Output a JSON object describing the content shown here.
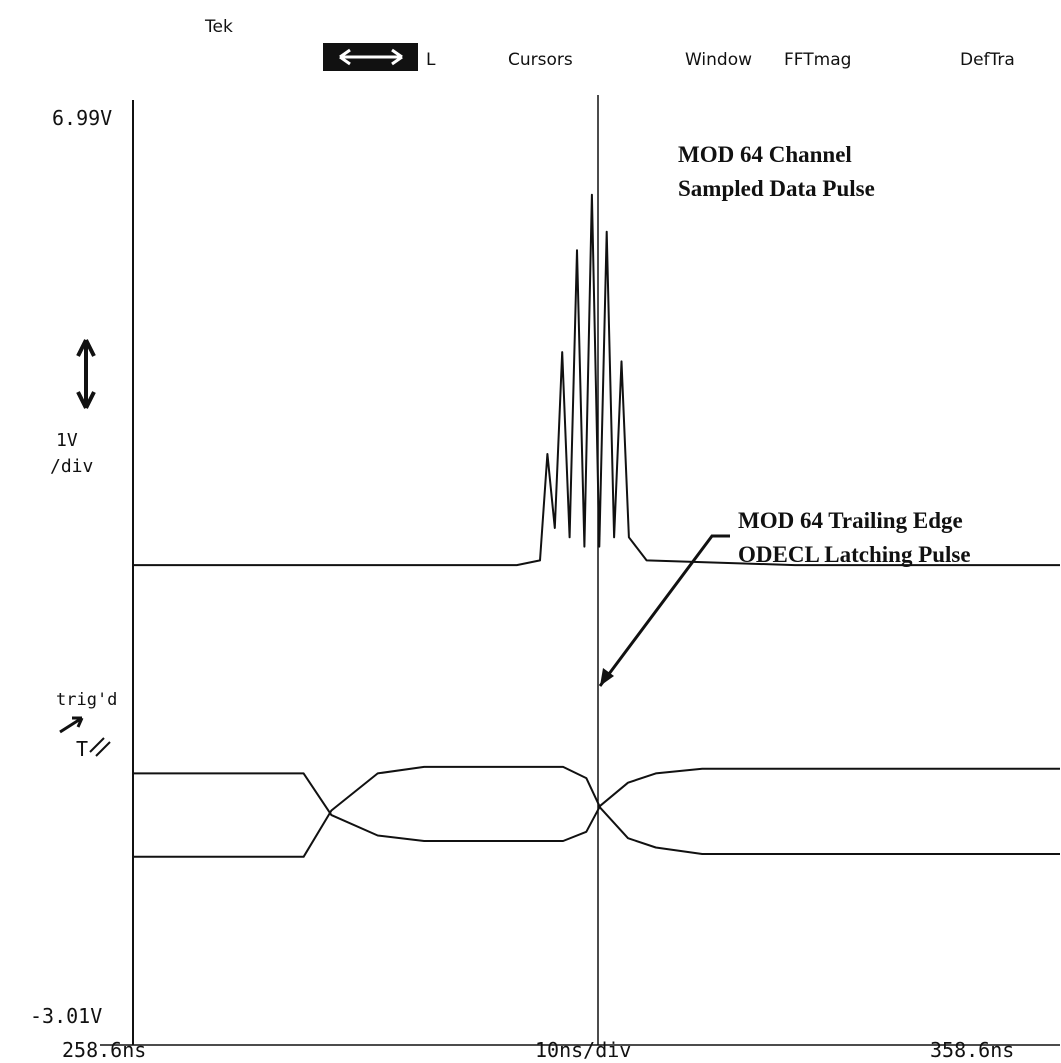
{
  "header": {
    "brand": "Tek",
    "cursor_mode": "L",
    "menu_items": [
      "Cursors",
      "Window",
      "FFTmag",
      "DefTra"
    ]
  },
  "scale": {
    "v_top": "6.99V",
    "v_bottom": "-3.01V",
    "v_div": "1V",
    "v_div_unit": "/div",
    "t_start": "258.6ns",
    "t_div": "10ns/div",
    "t_end": "358.6ns",
    "trig_label": "trig'd",
    "trig_marker": "T"
  },
  "annotations": {
    "data_pulse_line1": "MOD 64 Channel",
    "data_pulse_line2": "Sampled Data Pulse",
    "latch_line1": "MOD 64 Trailing Edge",
    "latch_line2": "ODECL Latching Pulse"
  },
  "chart_data": {
    "type": "line",
    "xlabel": "10ns/div",
    "ylabel": "1V/div",
    "xlim": [
      258.6,
      358.6
    ],
    "ylim": [
      -3.01,
      6.99
    ],
    "x_unit": "ns",
    "y_unit": "V",
    "cursor_x": 308.6,
    "series": [
      {
        "x": [
          258.6,
          280,
          300,
          302.5,
          303.3,
          304.1,
          304.9,
          305.7,
          306.5,
          307.3,
          308.1,
          308.9,
          309.7,
          310.5,
          311.3,
          312.1,
          314,
          330,
          358.6
        ],
        "y": [
          2.0,
          2.0,
          2.0,
          2.05,
          3.2,
          2.4,
          4.3,
          2.3,
          5.4,
          2.2,
          6.0,
          2.2,
          5.6,
          2.3,
          4.2,
          2.3,
          2.05,
          2.0,
          2.0
        ]
      },
      {
        "x": [
          258.6,
          275,
          277,
          280,
          285,
          290,
          305,
          307.5,
          309,
          312,
          315,
          320,
          340,
          358.6
        ],
        "y": [
          -1.15,
          -1.15,
          -1.15,
          -0.65,
          -0.25,
          -0.18,
          -0.18,
          -0.3,
          -0.62,
          -0.95,
          -1.05,
          -1.12,
          -1.12,
          -1.12
        ]
      },
      {
        "x": [
          258.6,
          275,
          277,
          280,
          285,
          290,
          305,
          307.5,
          309,
          312,
          315,
          320,
          340,
          358.6
        ],
        "y": [
          -0.25,
          -0.25,
          -0.25,
          -0.7,
          -0.92,
          -0.98,
          -0.98,
          -0.88,
          -0.6,
          -0.35,
          -0.25,
          -0.2,
          -0.2,
          -0.2
        ]
      }
    ]
  }
}
